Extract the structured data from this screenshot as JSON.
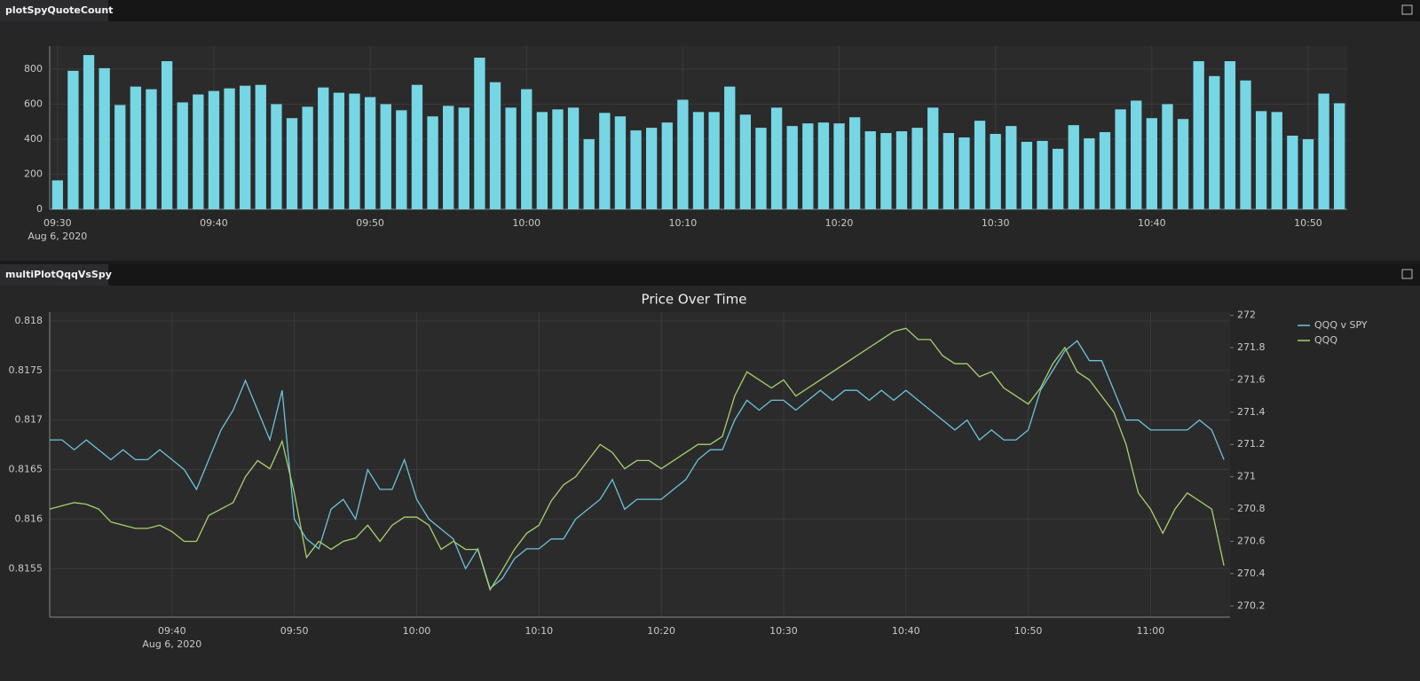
{
  "chart_data": [
    {
      "type": "bar",
      "panel": "plotSpyQuoteCount",
      "color": "#76d6e4",
      "grid": true,
      "x": [
        "09:30",
        "09:31",
        "09:32",
        "09:33",
        "09:34",
        "09:35",
        "09:36",
        "09:37",
        "09:38",
        "09:39",
        "09:40",
        "09:41",
        "09:42",
        "09:43",
        "09:44",
        "09:45",
        "09:46",
        "09:47",
        "09:48",
        "09:49",
        "09:50",
        "09:51",
        "09:52",
        "09:53",
        "09:54",
        "09:55",
        "09:56",
        "09:57",
        "09:58",
        "09:59",
        "10:00",
        "10:01",
        "10:02",
        "10:03",
        "10:04",
        "10:05",
        "10:06",
        "10:07",
        "10:08",
        "10:09",
        "10:10",
        "10:11",
        "10:12",
        "10:13",
        "10:14",
        "10:15",
        "10:16",
        "10:17",
        "10:18",
        "10:19",
        "10:20",
        "10:21",
        "10:22",
        "10:23",
        "10:24",
        "10:25",
        "10:26",
        "10:27",
        "10:28",
        "10:29",
        "10:30",
        "10:31",
        "10:32",
        "10:33",
        "10:34",
        "10:35",
        "10:36",
        "10:37",
        "10:38",
        "10:39",
        "10:40",
        "10:41",
        "10:42",
        "10:43",
        "10:44",
        "10:45",
        "10:46",
        "10:47",
        "10:48",
        "10:49",
        "10:50",
        "10:51",
        "10:52"
      ],
      "values": [
        165,
        790,
        880,
        805,
        595,
        700,
        685,
        845,
        610,
        655,
        675,
        690,
        705,
        710,
        600,
        520,
        585,
        695,
        665,
        660,
        640,
        600,
        565,
        710,
        530,
        590,
        580,
        865,
        725,
        580,
        685,
        555,
        570,
        580,
        400,
        550,
        530,
        450,
        465,
        495,
        625,
        555,
        555,
        700,
        540,
        465,
        580,
        475,
        490,
        495,
        490,
        525,
        445,
        435,
        445,
        465,
        580,
        435,
        410,
        505,
        430,
        475,
        385,
        390,
        345,
        480,
        405,
        440,
        570,
        620,
        520,
        600,
        515,
        845,
        760,
        845,
        735,
        560,
        555,
        420,
        400,
        660,
        605
      ],
      "xlim": [
        "09:29:30",
        "10:52:30"
      ],
      "xticks": [
        "09:30",
        "09:40",
        "09:50",
        "10:00",
        "10:10",
        "10:20",
        "10:30",
        "10:40",
        "10:50"
      ],
      "x_date_label": "Aug 6, 2020",
      "ylim": [
        0,
        931
      ],
      "yticks": [
        0,
        200,
        400,
        600,
        800
      ]
    },
    {
      "type": "line",
      "panel": "multiPlotQqqVsSpy",
      "title": "Price Over Time",
      "grid": true,
      "x": [
        "09:30",
        "09:31",
        "09:32",
        "09:33",
        "09:34",
        "09:35",
        "09:36",
        "09:37",
        "09:38",
        "09:39",
        "09:40",
        "09:41",
        "09:42",
        "09:43",
        "09:44",
        "09:45",
        "09:46",
        "09:47",
        "09:48",
        "09:49",
        "09:50",
        "09:51",
        "09:52",
        "09:53",
        "09:54",
        "09:55",
        "09:56",
        "09:57",
        "09:58",
        "09:59",
        "10:00",
        "10:01",
        "10:02",
        "10:03",
        "10:04",
        "10:05",
        "10:06",
        "10:07",
        "10:08",
        "10:09",
        "10:10",
        "10:11",
        "10:12",
        "10:13",
        "10:14",
        "10:15",
        "10:16",
        "10:17",
        "10:18",
        "10:19",
        "10:20",
        "10:21",
        "10:22",
        "10:23",
        "10:24",
        "10:25",
        "10:26",
        "10:27",
        "10:28",
        "10:29",
        "10:30",
        "10:31",
        "10:32",
        "10:33",
        "10:34",
        "10:35",
        "10:36",
        "10:37",
        "10:38",
        "10:39",
        "10:40",
        "10:41",
        "10:42",
        "10:43",
        "10:44",
        "10:45",
        "10:46",
        "10:47",
        "10:48",
        "10:49",
        "10:50",
        "10:51",
        "10:52",
        "10:53",
        "10:54",
        "10:55",
        "10:56",
        "10:57",
        "10:58",
        "10:59",
        "11:00",
        "11:01",
        "11:02",
        "11:03",
        "11:04",
        "11:05",
        "11:06"
      ],
      "series": [
        {
          "name": "QQQ v SPY",
          "color": "#6cc3d9",
          "values": [
            0.8168,
            0.8168,
            0.8167,
            0.8168,
            0.8167,
            0.8166,
            0.8167,
            0.8166,
            0.8166,
            0.8167,
            0.8166,
            0.8165,
            0.8163,
            0.8166,
            0.8169,
            0.8171,
            0.8174,
            0.8171,
            0.8168,
            0.8173,
            0.816,
            0.8158,
            0.8157,
            0.8161,
            0.8162,
            0.816,
            0.8165,
            0.8163,
            0.8163,
            0.8166,
            0.8162,
            0.816,
            0.8159,
            0.8158,
            0.8155,
            0.8157,
            0.8153,
            0.8154,
            0.8156,
            0.8157,
            0.8157,
            0.8158,
            0.8158,
            0.816,
            0.8161,
            0.8162,
            0.8164,
            0.8161,
            0.8162,
            0.8162,
            0.8162,
            0.8163,
            0.8164,
            0.8166,
            0.8167,
            0.8167,
            0.817,
            0.8172,
            0.8171,
            0.8172,
            0.8172,
            0.8171,
            0.8172,
            0.8173,
            0.8172,
            0.8173,
            0.8173,
            0.8172,
            0.8173,
            0.8172,
            0.8173,
            0.8172,
            0.8171,
            0.817,
            0.8169,
            0.817,
            0.8168,
            0.8169,
            0.8168,
            0.8168,
            0.8169,
            0.8173,
            0.8175,
            0.8177,
            0.8178,
            0.8176,
            0.8176,
            0.8173,
            0.817,
            0.817,
            0.8169,
            0.8169,
            0.8169,
            0.8169,
            0.817,
            0.8169,
            0.8166
          ]
        },
        {
          "name": "QQQ",
          "color": "#a7d26a",
          "axis": "y2",
          "values": [
            270.8,
            270.82,
            270.84,
            270.83,
            270.8,
            270.72,
            270.7,
            270.68,
            270.68,
            270.7,
            270.66,
            270.6,
            270.6,
            270.76,
            270.8,
            270.84,
            271.0,
            271.1,
            271.05,
            271.22,
            270.9,
            270.5,
            270.6,
            270.55,
            270.6,
            270.62,
            270.7,
            270.6,
            270.7,
            270.75,
            270.75,
            270.7,
            270.55,
            270.6,
            270.55,
            270.55,
            270.3,
            270.42,
            270.55,
            270.65,
            270.7,
            270.85,
            270.95,
            271.0,
            271.1,
            271.2,
            271.15,
            271.05,
            271.1,
            271.1,
            271.05,
            271.1,
            271.15,
            271.2,
            271.2,
            271.25,
            271.5,
            271.65,
            271.6,
            271.55,
            271.6,
            271.5,
            271.55,
            271.6,
            271.65,
            271.7,
            271.75,
            271.8,
            271.85,
            271.9,
            271.92,
            271.85,
            271.85,
            271.75,
            271.7,
            271.7,
            271.62,
            271.65,
            271.55,
            271.5,
            271.45,
            271.55,
            271.7,
            271.8,
            271.65,
            271.6,
            271.5,
            271.4,
            271.2,
            270.9,
            270.8,
            270.65,
            270.8,
            270.9,
            270.85,
            270.8,
            270.45
          ]
        }
      ],
      "xlim": [
        "09:30",
        "11:06:30"
      ],
      "xticks": [
        "09:40",
        "09:50",
        "10:00",
        "10:10",
        "10:20",
        "10:30",
        "10:40",
        "10:50",
        "11:00"
      ],
      "x_date_label": "Aug 6, 2020",
      "ylim": [
        0.81501,
        0.81809
      ],
      "yticks": [
        0.8155,
        0.816,
        0.8165,
        0.817,
        0.8175,
        0.818
      ],
      "y2lim": [
        270.13,
        272.02
      ],
      "y2ticks": [
        270.2,
        270.4,
        270.6,
        270.8,
        271,
        271.2,
        271.4,
        271.6,
        271.8,
        272
      ]
    }
  ]
}
